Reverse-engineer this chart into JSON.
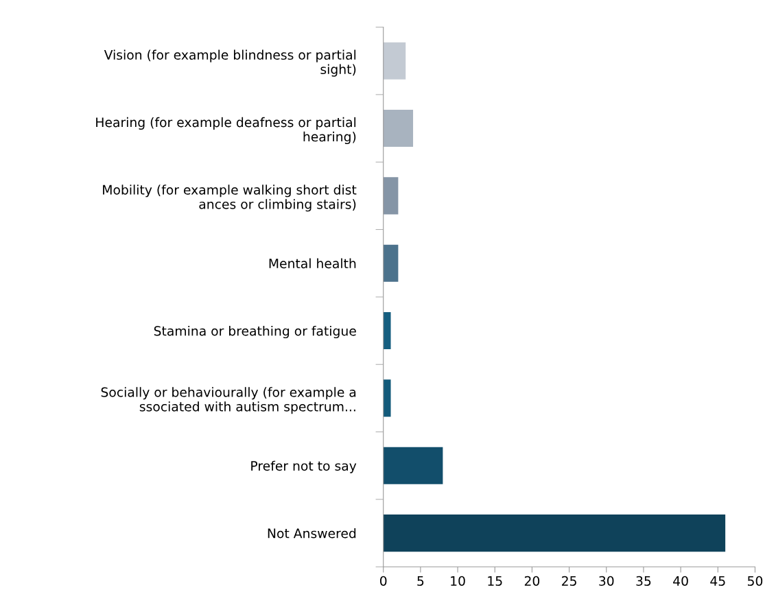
{
  "chart_data": {
    "type": "bar",
    "orientation": "horizontal",
    "categories": [
      "Vision (for example blindness or partial\nsight)",
      "Hearing (for example deafness or partial\nhearing)",
      "Mobility (for example walking short dist\nances or climbing stairs)",
      "Mental health",
      "Stamina or breathing or fatigue",
      "Socially or behaviourally (for example a\nssociated with autism spectrum...",
      "Prefer not to say",
      "Not Answered"
    ],
    "values": [
      3,
      4,
      2,
      2,
      1,
      1,
      8,
      46
    ],
    "colors": [
      "#c3cad3",
      "#a8b3bf",
      "#8595a6",
      "#4c728c",
      "#155e7f",
      "#135a7a",
      "#124e6b",
      "#0f425a"
    ],
    "xlim": [
      0,
      50
    ],
    "xticks": [
      0,
      5,
      10,
      15,
      20,
      25,
      30,
      35,
      40,
      45,
      50
    ],
    "grid": false
  }
}
